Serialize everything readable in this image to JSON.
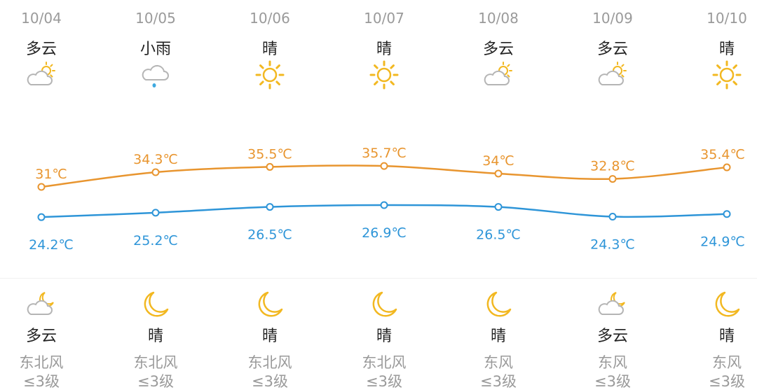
{
  "colors": {
    "high": "#E8952F",
    "low": "#2E95D8",
    "sun": "#F2B821",
    "cloud": "#B5B5B5",
    "rain": "#3EA9E0"
  },
  "days": [
    {
      "date": "10/04",
      "day_weather": "多云",
      "day_icon": "partly-cloudy-day-icon",
      "night_icon": "partly-cloudy-night-icon",
      "night_weather": "多云",
      "wind_dir": "东北风",
      "wind_level": "≤3级",
      "high_label": "31℃",
      "low_label": "24.2℃"
    },
    {
      "date": "10/05",
      "day_weather": "小雨",
      "day_icon": "light-rain-icon",
      "night_icon": "moon-icon",
      "night_weather": "晴",
      "wind_dir": "东北风",
      "wind_level": "≤3级",
      "high_label": "34.3℃",
      "low_label": "25.2℃"
    },
    {
      "date": "10/06",
      "day_weather": "晴",
      "day_icon": "sun-icon",
      "night_icon": "moon-icon",
      "night_weather": "晴",
      "wind_dir": "东北风",
      "wind_level": "≤3级",
      "high_label": "35.5℃",
      "low_label": "26.5℃"
    },
    {
      "date": "10/07",
      "day_weather": "晴",
      "day_icon": "sun-icon",
      "night_icon": "moon-icon",
      "night_weather": "晴",
      "wind_dir": "东北风",
      "wind_level": "≤3级",
      "high_label": "35.7℃",
      "low_label": "26.9℃"
    },
    {
      "date": "10/08",
      "day_weather": "多云",
      "day_icon": "partly-cloudy-day-icon",
      "night_icon": "moon-icon",
      "night_weather": "晴",
      "wind_dir": "东风",
      "wind_level": "≤3级",
      "high_label": "34℃",
      "low_label": "26.5℃"
    },
    {
      "date": "10/09",
      "day_weather": "多云",
      "day_icon": "partly-cloudy-day-icon",
      "night_icon": "partly-cloudy-night-icon",
      "night_weather": "多云",
      "wind_dir": "东风",
      "wind_level": "≤3级",
      "high_label": "32.8℃",
      "low_label": "24.3℃"
    },
    {
      "date": "10/10",
      "day_weather": "晴",
      "day_icon": "sun-icon",
      "night_icon": "moon-icon",
      "night_weather": "晴",
      "wind_dir": "东风",
      "wind_level": "≤3级",
      "high_label": "35.4℃",
      "low_label": "24.9℃"
    }
  ],
  "chart_data": {
    "type": "line",
    "categories": [
      "10/04",
      "10/05",
      "10/06",
      "10/07",
      "10/08",
      "10/09",
      "10/10"
    ],
    "unit": "℃",
    "series": [
      {
        "values": [
          31,
          34.3,
          35.5,
          35.7,
          34,
          32.8,
          35.4
        ],
        "color": "#E8952F"
      },
      {
        "values": [
          24.2,
          25.2,
          26.5,
          26.9,
          26.5,
          24.3,
          24.9
        ],
        "color": "#2E95D8"
      }
    ],
    "grid": false
  }
}
